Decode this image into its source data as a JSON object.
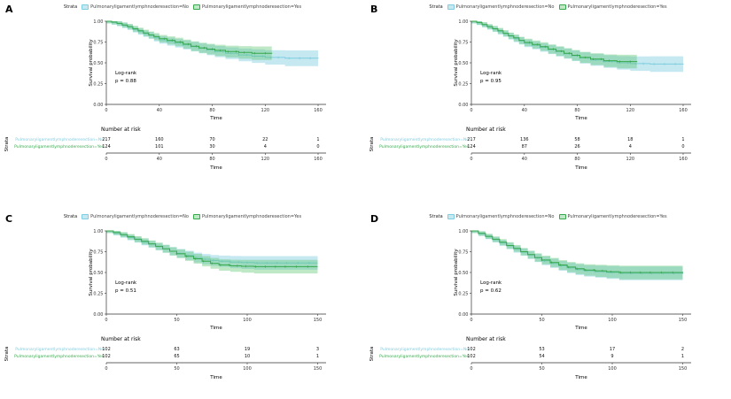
{
  "figure": {
    "legend_title": "Strata",
    "xlabel": "Time",
    "ylabel": "Survival probability",
    "risk_title": "Number at risk",
    "strata_axis_label": "Strata",
    "logrank_label": "Log-rank",
    "ytick_labels": [
      "1.00",
      "0.75",
      "0.50",
      "0.25",
      "0.00"
    ]
  },
  "strata": [
    {
      "name": "Pulmonaryligamentlymphnoderesection=No",
      "color": "#7fcde0",
      "fill": "rgba(127,205,224,0.45)"
    },
    {
      "name": "Pulmonaryligamentlymphnoderesection=Yes",
      "color": "#38a84c",
      "fill": "rgba(86,194,108,0.38)"
    }
  ],
  "chart_data": [
    {
      "type": "line",
      "panel": "A",
      "p_text": "p = 0.88",
      "xlabel": "Time",
      "ylabel": "Survival probability",
      "xlim": [
        0,
        166
      ],
      "ylim": [
        0,
        1
      ],
      "xticks": [
        0,
        40,
        80,
        120,
        160
      ],
      "series": [
        {
          "name": "Pulmonaryligamentlymphnoderesection=No",
          "x": [
            0,
            4,
            8,
            12,
            16,
            20,
            24,
            28,
            32,
            36,
            40,
            46,
            52,
            58,
            64,
            70,
            76,
            82,
            90,
            100,
            110,
            120,
            135,
            160
          ],
          "y": [
            1,
            0.985,
            0.97,
            0.95,
            0.93,
            0.9,
            0.875,
            0.85,
            0.83,
            0.8,
            0.775,
            0.755,
            0.735,
            0.715,
            0.695,
            0.675,
            0.655,
            0.635,
            0.615,
            0.595,
            0.58,
            0.565,
            0.555,
            0.55
          ],
          "censors": [
            46,
            52,
            58,
            64,
            70,
            76,
            82,
            88,
            94,
            100,
            106,
            112,
            118,
            124,
            130,
            138,
            146,
            154
          ]
        },
        {
          "name": "Pulmonaryligamentlymphnoderesection=Yes",
          "x": [
            0,
            4,
            8,
            12,
            16,
            20,
            24,
            28,
            32,
            36,
            40,
            46,
            52,
            58,
            64,
            70,
            76,
            82,
            90,
            100,
            110,
            125
          ],
          "y": [
            1,
            0.99,
            0.975,
            0.955,
            0.935,
            0.91,
            0.885,
            0.86,
            0.835,
            0.815,
            0.79,
            0.77,
            0.75,
            0.725,
            0.7,
            0.68,
            0.665,
            0.65,
            0.635,
            0.625,
            0.615,
            0.61
          ],
          "censors": [
            44,
            50,
            56,
            62,
            68,
            74,
            80,
            86,
            92,
            98,
            104,
            112,
            120
          ]
        }
      ],
      "risk": [
        [
          217,
          160,
          70,
          22,
          1
        ],
        [
          124,
          101,
          30,
          4,
          0
        ]
      ]
    },
    {
      "type": "line",
      "panel": "B",
      "p_text": "p = 0.95",
      "xlabel": "Time",
      "ylabel": "Survival probability",
      "xlim": [
        0,
        166
      ],
      "ylim": [
        0,
        1
      ],
      "xticks": [
        0,
        40,
        80,
        120,
        160
      ],
      "series": [
        {
          "name": "Pulmonaryligamentlymphnoderesection=No",
          "x": [
            0,
            4,
            8,
            12,
            16,
            20,
            24,
            28,
            32,
            36,
            40,
            46,
            52,
            58,
            64,
            70,
            76,
            82,
            90,
            100,
            110,
            120,
            135,
            160
          ],
          "y": [
            1,
            0.98,
            0.955,
            0.93,
            0.905,
            0.875,
            0.85,
            0.82,
            0.79,
            0.765,
            0.735,
            0.71,
            0.685,
            0.66,
            0.635,
            0.61,
            0.585,
            0.56,
            0.535,
            0.515,
            0.5,
            0.49,
            0.485,
            0.48
          ],
          "censors": [
            46,
            52,
            58,
            64,
            70,
            76,
            82,
            88,
            94,
            100,
            106,
            112,
            118,
            124,
            130,
            138,
            146,
            154
          ]
        },
        {
          "name": "Pulmonaryligamentlymphnoderesection=Yes",
          "x": [
            0,
            4,
            8,
            12,
            16,
            20,
            24,
            28,
            32,
            36,
            40,
            46,
            52,
            58,
            64,
            70,
            76,
            82,
            90,
            100,
            110,
            125
          ],
          "y": [
            1,
            0.985,
            0.96,
            0.935,
            0.91,
            0.885,
            0.855,
            0.825,
            0.8,
            0.77,
            0.745,
            0.72,
            0.695,
            0.665,
            0.64,
            0.615,
            0.59,
            0.565,
            0.545,
            0.525,
            0.515,
            0.51
          ],
          "censors": [
            44,
            50,
            56,
            62,
            68,
            74,
            80,
            86,
            92,
            98,
            104,
            112,
            120
          ]
        }
      ],
      "risk": [
        [
          217,
          136,
          58,
          18,
          1
        ],
        [
          124,
          87,
          26,
          4,
          0
        ]
      ]
    },
    {
      "type": "line",
      "panel": "C",
      "p_text": "p = 0.51",
      "xlabel": "Time",
      "ylabel": "Survival probability",
      "xlim": [
        0,
        156
      ],
      "ylim": [
        0,
        1
      ],
      "xticks": [
        0,
        50,
        100,
        150
      ],
      "series": [
        {
          "name": "Pulmonaryligamentlymphnoderesection=No",
          "x": [
            0,
            5,
            10,
            15,
            20,
            25,
            30,
            35,
            40,
            45,
            50,
            56,
            62,
            68,
            74,
            80,
            88,
            96,
            105,
            150
          ],
          "y": [
            1,
            0.975,
            0.95,
            0.92,
            0.895,
            0.865,
            0.84,
            0.81,
            0.785,
            0.755,
            0.73,
            0.705,
            0.68,
            0.66,
            0.645,
            0.635,
            0.625,
            0.62,
            0.615,
            0.615
          ],
          "censors": [
            52,
            58,
            64,
            70,
            76,
            82,
            88,
            94,
            100,
            107,
            114,
            121,
            128,
            136,
            144
          ]
        },
        {
          "name": "Pulmonaryligamentlymphnoderesection=Yes",
          "x": [
            0,
            5,
            10,
            15,
            20,
            25,
            30,
            35,
            40,
            45,
            50,
            56,
            62,
            68,
            74,
            80,
            88,
            96,
            105,
            150
          ],
          "y": [
            1,
            0.98,
            0.955,
            0.93,
            0.9,
            0.875,
            0.845,
            0.815,
            0.785,
            0.755,
            0.725,
            0.695,
            0.665,
            0.635,
            0.61,
            0.59,
            0.58,
            0.575,
            0.57,
            0.57
          ],
          "censors": [
            50,
            57,
            63,
            69,
            75,
            81,
            87,
            93,
            99,
            106,
            113,
            120,
            127,
            135,
            143
          ]
        }
      ],
      "risk": [
        [
          102,
          63,
          19,
          3
        ],
        [
          102,
          65,
          10,
          1
        ]
      ]
    },
    {
      "type": "line",
      "panel": "D",
      "p_text": "p = 0.62",
      "xlabel": "Time",
      "ylabel": "Survival probability",
      "xlim": [
        0,
        156
      ],
      "ylim": [
        0,
        1
      ],
      "xticks": [
        0,
        50,
        100,
        150
      ],
      "series": [
        {
          "name": "Pulmonaryligamentlymphnoderesection=No",
          "x": [
            0,
            5,
            10,
            15,
            20,
            25,
            30,
            35,
            40,
            45,
            50,
            56,
            62,
            68,
            74,
            80,
            88,
            96,
            105,
            150
          ],
          "y": [
            1,
            0.965,
            0.93,
            0.895,
            0.855,
            0.82,
            0.78,
            0.745,
            0.71,
            0.675,
            0.64,
            0.61,
            0.58,
            0.555,
            0.535,
            0.52,
            0.51,
            0.5,
            0.49,
            0.485
          ],
          "censors": [
            52,
            58,
            64,
            70,
            76,
            82,
            88,
            94,
            100,
            107,
            114,
            121,
            128,
            136,
            144
          ]
        },
        {
          "name": "Pulmonaryligamentlymphnoderesection=Yes",
          "x": [
            0,
            5,
            10,
            15,
            20,
            25,
            30,
            35,
            40,
            45,
            50,
            56,
            62,
            68,
            74,
            80,
            88,
            96,
            105,
            150
          ],
          "y": [
            1,
            0.97,
            0.935,
            0.9,
            0.865,
            0.825,
            0.79,
            0.75,
            0.715,
            0.68,
            0.65,
            0.62,
            0.59,
            0.565,
            0.545,
            0.53,
            0.52,
            0.51,
            0.5,
            0.495
          ],
          "censors": [
            50,
            57,
            63,
            69,
            75,
            81,
            87,
            93,
            99,
            106,
            113,
            120,
            127,
            135,
            143
          ]
        }
      ],
      "risk": [
        [
          102,
          53,
          17,
          2
        ],
        [
          102,
          54,
          9,
          1
        ]
      ]
    }
  ]
}
